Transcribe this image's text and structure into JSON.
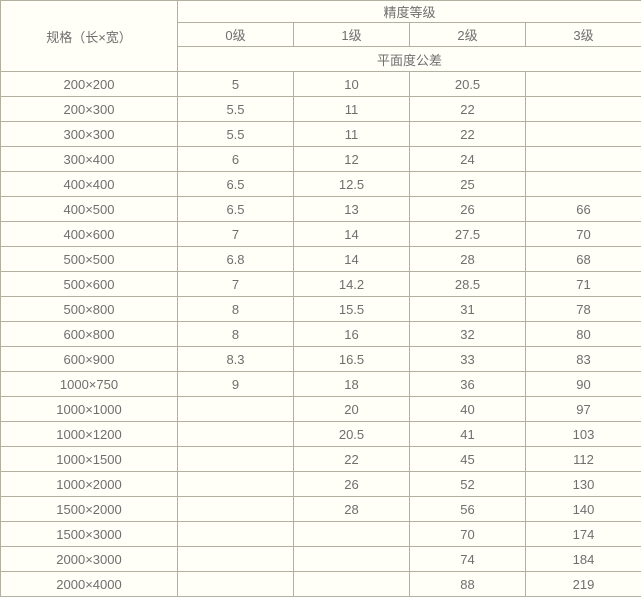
{
  "table": {
    "spec_header": "规格（长×宽）",
    "precision_header": "精度等级",
    "grade_labels": [
      "0级",
      "1级",
      "2级",
      "3级"
    ],
    "tolerance_header": "平面度公差",
    "rows": [
      {
        "size": "200×200",
        "values": [
          "5",
          "10",
          "20.5",
          ""
        ]
      },
      {
        "size": "200×300",
        "values": [
          "5.5",
          "11",
          "22",
          ""
        ]
      },
      {
        "size": "300×300",
        "values": [
          "5.5",
          "11",
          "22",
          ""
        ]
      },
      {
        "size": "300×400",
        "values": [
          "6",
          "12",
          "24",
          ""
        ]
      },
      {
        "size": "400×400",
        "values": [
          "6.5",
          "12.5",
          "25",
          ""
        ]
      },
      {
        "size": "400×500",
        "values": [
          "6.5",
          "13",
          "26",
          "66"
        ]
      },
      {
        "size": "400×600",
        "values": [
          "7",
          "14",
          "27.5",
          "70"
        ]
      },
      {
        "size": "500×500",
        "values": [
          "6.8",
          "14",
          "28",
          "68"
        ]
      },
      {
        "size": "500×600",
        "values": [
          "7",
          "14.2",
          "28.5",
          "71"
        ]
      },
      {
        "size": "500×800",
        "values": [
          "8",
          "15.5",
          "31",
          "78"
        ]
      },
      {
        "size": "600×800",
        "values": [
          "8",
          "16",
          "32",
          "80"
        ]
      },
      {
        "size": "600×900",
        "values": [
          "8.3",
          "16.5",
          "33",
          "83"
        ]
      },
      {
        "size": "1000×750",
        "values": [
          "9",
          "18",
          "36",
          "90"
        ]
      },
      {
        "size": "1000×1000",
        "values": [
          "",
          "20",
          "40",
          "97"
        ]
      },
      {
        "size": "1000×1200",
        "values": [
          "",
          "20.5",
          "41",
          "103"
        ]
      },
      {
        "size": "1000×1500",
        "values": [
          "",
          "22",
          "45",
          "112"
        ]
      },
      {
        "size": "1000×2000",
        "values": [
          "",
          "26",
          "52",
          "130"
        ]
      },
      {
        "size": "1500×2000",
        "values": [
          "",
          "28",
          "56",
          "140"
        ]
      },
      {
        "size": "1500×3000",
        "values": [
          "",
          "",
          "70",
          "174"
        ]
      },
      {
        "size": "2000×3000",
        "values": [
          "",
          "",
          "74",
          "184"
        ]
      },
      {
        "size": "2000×4000",
        "values": [
          "",
          "",
          "88",
          "219"
        ]
      }
    ]
  },
  "colors": {
    "border": "#b2b0a1",
    "text": "#6f6f6f",
    "cell_background": "#fffef7",
    "page_background": "#ffffff"
  }
}
